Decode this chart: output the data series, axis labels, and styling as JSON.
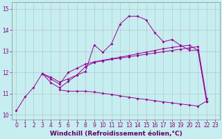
{
  "xlabel": "Windchill (Refroidissement éolien,°C)",
  "bg_color": "#c6eef0",
  "line_color": "#990099",
  "grid_color": "#b0b0b0",
  "xlim": [
    -0.5,
    23.5
  ],
  "ylim": [
    9.8,
    15.3
  ],
  "xticks": [
    0,
    1,
    2,
    3,
    4,
    5,
    6,
    7,
    8,
    9,
    10,
    11,
    12,
    13,
    14,
    15,
    16,
    17,
    18,
    19,
    20,
    21,
    22,
    23
  ],
  "yticks": [
    10,
    11,
    12,
    13,
    14,
    15
  ],
  "series": [
    {
      "x": [
        0,
        1,
        2,
        3,
        4,
        5,
        6,
        7,
        8,
        9,
        10,
        11,
        12,
        13,
        14,
        15,
        16,
        17,
        18,
        19,
        20,
        21,
        22
      ],
      "y": [
        10.2,
        10.85,
        11.3,
        11.95,
        11.7,
        11.45,
        12.0,
        12.2,
        12.4,
        12.5,
        12.58,
        12.65,
        12.72,
        12.8,
        12.88,
        12.96,
        13.04,
        13.12,
        13.18,
        13.24,
        13.28,
        13.05,
        10.65
      ]
    },
    {
      "x": [
        3,
        4,
        5,
        6,
        7,
        8,
        9,
        10,
        11,
        12,
        13,
        14,
        15,
        16,
        17,
        18,
        19,
        20,
        21,
        22
      ],
      "y": [
        11.95,
        11.78,
        11.55,
        11.7,
        11.88,
        12.05,
        13.3,
        12.95,
        13.35,
        14.28,
        14.65,
        14.65,
        14.48,
        13.88,
        13.45,
        13.55,
        13.28,
        13.05,
        13.05,
        10.65
      ]
    },
    {
      "x": [
        3,
        4,
        5,
        6,
        7,
        8,
        9,
        10,
        11,
        12,
        13,
        14,
        15,
        16,
        17,
        18,
        19,
        20,
        21,
        22
      ],
      "y": [
        11.95,
        11.52,
        11.28,
        11.58,
        11.88,
        12.28,
        12.48,
        12.55,
        12.62,
        12.68,
        12.74,
        12.8,
        12.86,
        12.92,
        12.98,
        13.04,
        13.1,
        13.16,
        13.22,
        10.78
      ]
    },
    {
      "x": [
        5,
        6,
        7,
        8,
        9,
        10,
        11,
        12,
        13,
        14,
        15,
        16,
        17,
        18,
        19,
        20,
        21,
        22
      ],
      "y": [
        11.18,
        11.12,
        11.12,
        11.12,
        11.08,
        11.02,
        10.97,
        10.9,
        10.84,
        10.78,
        10.73,
        10.67,
        10.62,
        10.57,
        10.52,
        10.47,
        10.42,
        10.65
      ]
    }
  ],
  "xlabel_fontsize": 6.5,
  "tick_fontsize": 5.5,
  "figsize": [
    3.2,
    2.0
  ],
  "dpi": 100
}
